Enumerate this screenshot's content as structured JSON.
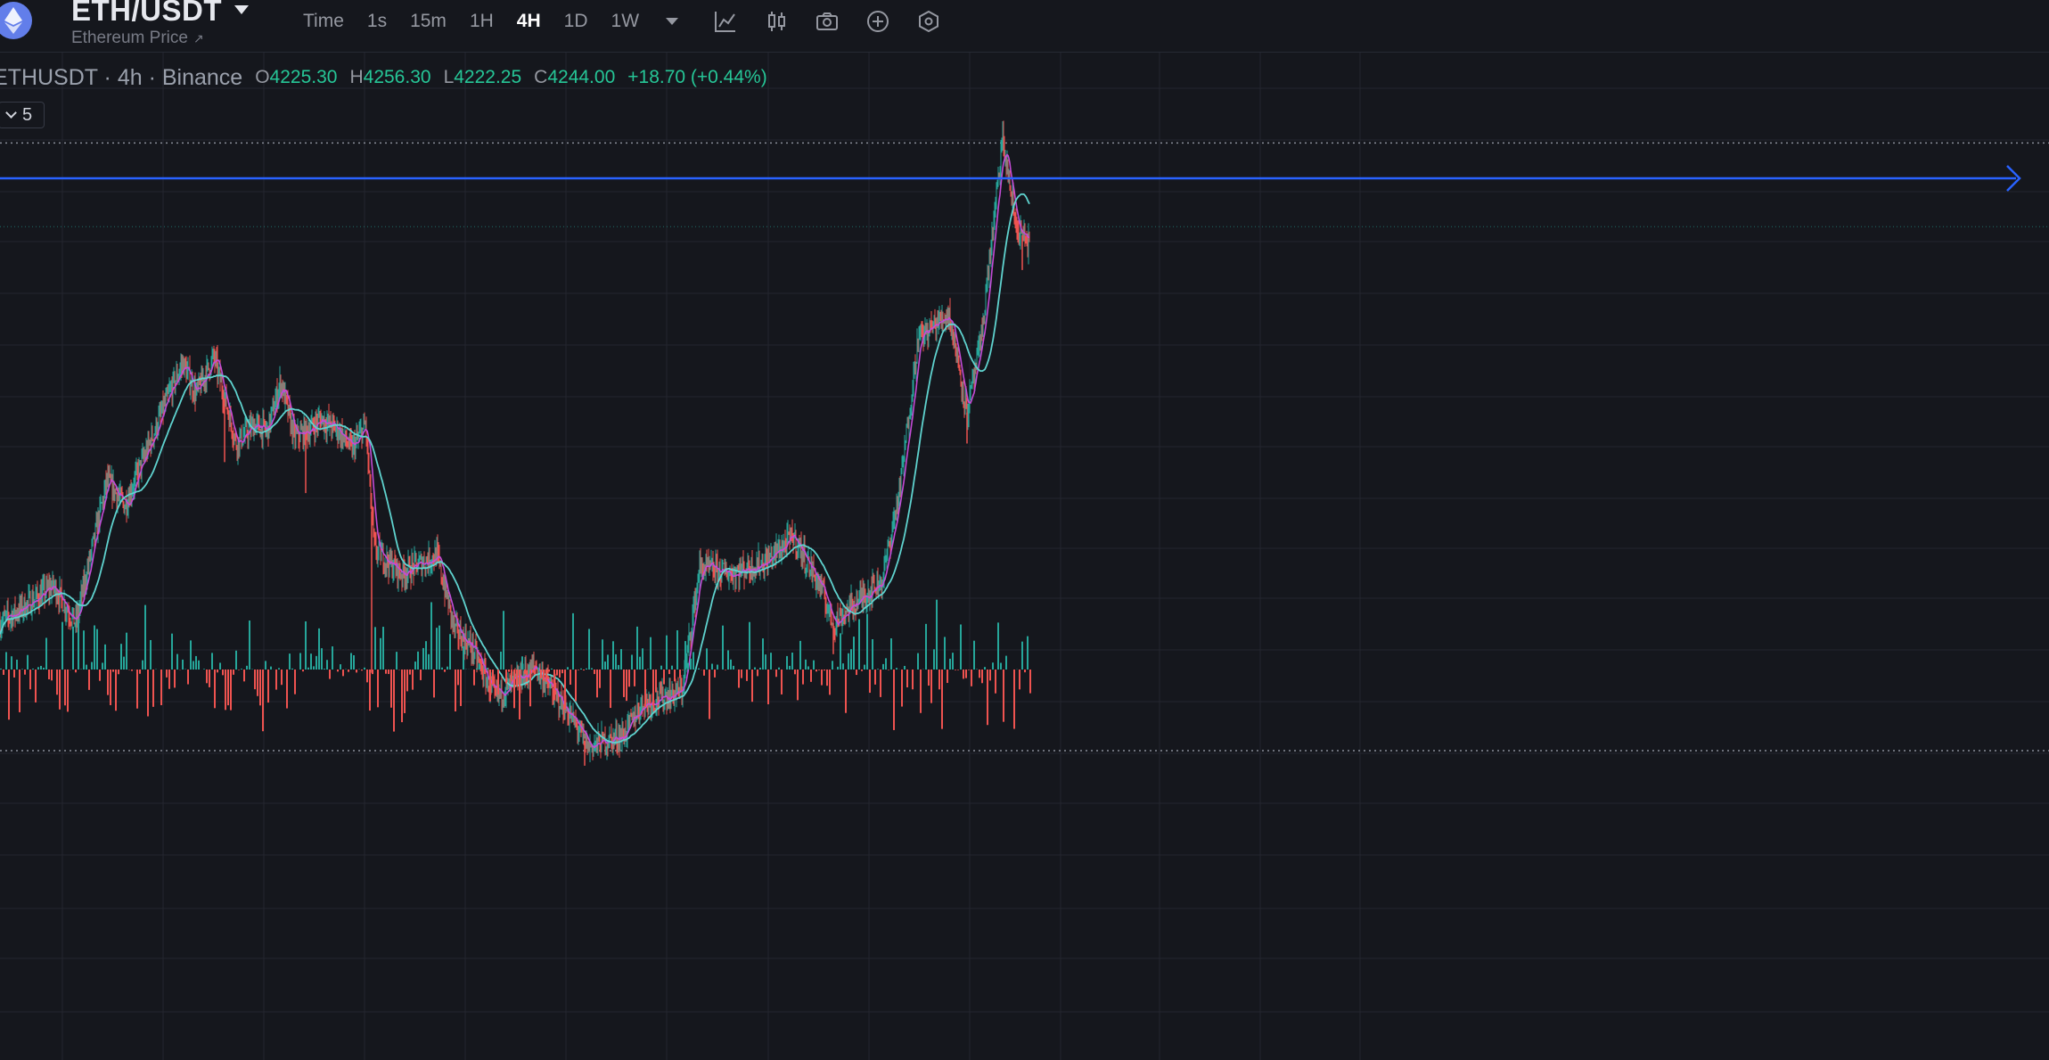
{
  "header": {
    "symbol": "ETH/USDT",
    "subtitle": "Ethereum Price",
    "subtitle_link_icon": "external-arrow-icon",
    "logo_icon": "ethereum-logo-icon"
  },
  "timeframes": [
    {
      "label": "Time",
      "active": false
    },
    {
      "label": "1s",
      "active": false
    },
    {
      "label": "15m",
      "active": false
    },
    {
      "label": "1H",
      "active": false
    },
    {
      "label": "4H",
      "active": true
    },
    {
      "label": "1D",
      "active": false
    },
    {
      "label": "1W",
      "active": false
    }
  ],
  "toolbar_icons": [
    "indicators-icon",
    "candle-style-icon",
    "camera-icon",
    "add-icon",
    "settings-icon"
  ],
  "legend": {
    "symbol": "ETHUSDT · 4h · Binance",
    "open_label": "O",
    "open": "4225.30",
    "high_label": "H",
    "high": "4256.30",
    "low_label": "L",
    "low": "4222.25",
    "close_label": "C",
    "close": "4244.00",
    "change": "+18.70 (+0.44%)"
  },
  "indicators_toggle": {
    "count": "5"
  },
  "colors": {
    "up": "#26a69a",
    "down": "#ef5350",
    "ma_fast": "#c44bd6",
    "ma_slow": "#5fd3cf",
    "horizontal_line": "#2962ff",
    "grid": "#23262e"
  },
  "chart_data": {
    "type": "candlestick",
    "symbol": "ETHUSDT",
    "interval": "4h",
    "exchange": "Binance",
    "last_ohlc": {
      "open": 4225.3,
      "high": 4256.3,
      "low": 4222.25,
      "close": 4244.0,
      "change": 18.7,
      "change_pct": 0.44
    },
    "price_path_anchors": [
      [
        0,
        0.21
      ],
      [
        60,
        0.27
      ],
      [
        85,
        0.21
      ],
      [
        120,
        0.44
      ],
      [
        140,
        0.4
      ],
      [
        190,
        0.58
      ],
      [
        205,
        0.63
      ],
      [
        220,
        0.58
      ],
      [
        240,
        0.64
      ],
      [
        265,
        0.5
      ],
      [
        285,
        0.53
      ],
      [
        300,
        0.52
      ],
      [
        315,
        0.6
      ],
      [
        330,
        0.51
      ],
      [
        345,
        0.52
      ],
      [
        360,
        0.54
      ],
      [
        380,
        0.52
      ],
      [
        395,
        0.49
      ],
      [
        410,
        0.53
      ],
      [
        420,
        0.33
      ],
      [
        450,
        0.29
      ],
      [
        490,
        0.32
      ],
      [
        510,
        0.2
      ],
      [
        530,
        0.17
      ],
      [
        555,
        0.09
      ],
      [
        600,
        0.14
      ],
      [
        640,
        0.06
      ],
      [
        660,
        0.01
      ],
      [
        700,
        0.03
      ],
      [
        720,
        0.08
      ],
      [
        765,
        0.1
      ],
      [
        785,
        0.3
      ],
      [
        820,
        0.29
      ],
      [
        860,
        0.31
      ],
      [
        890,
        0.35
      ],
      [
        920,
        0.27
      ],
      [
        935,
        0.21
      ],
      [
        965,
        0.25
      ],
      [
        990,
        0.28
      ],
      [
        1010,
        0.43
      ],
      [
        1030,
        0.67
      ],
      [
        1065,
        0.71
      ],
      [
        1085,
        0.55
      ],
      [
        1100,
        0.66
      ],
      [
        1115,
        0.86
      ],
      [
        1125,
        0.99
      ],
      [
        1140,
        0.85
      ],
      [
        1155,
        0.82
      ]
    ],
    "horizontal_line_level": 0.81,
    "upper_dotted_level": 0.985,
    "lower_dotted_level": 0.0
  }
}
